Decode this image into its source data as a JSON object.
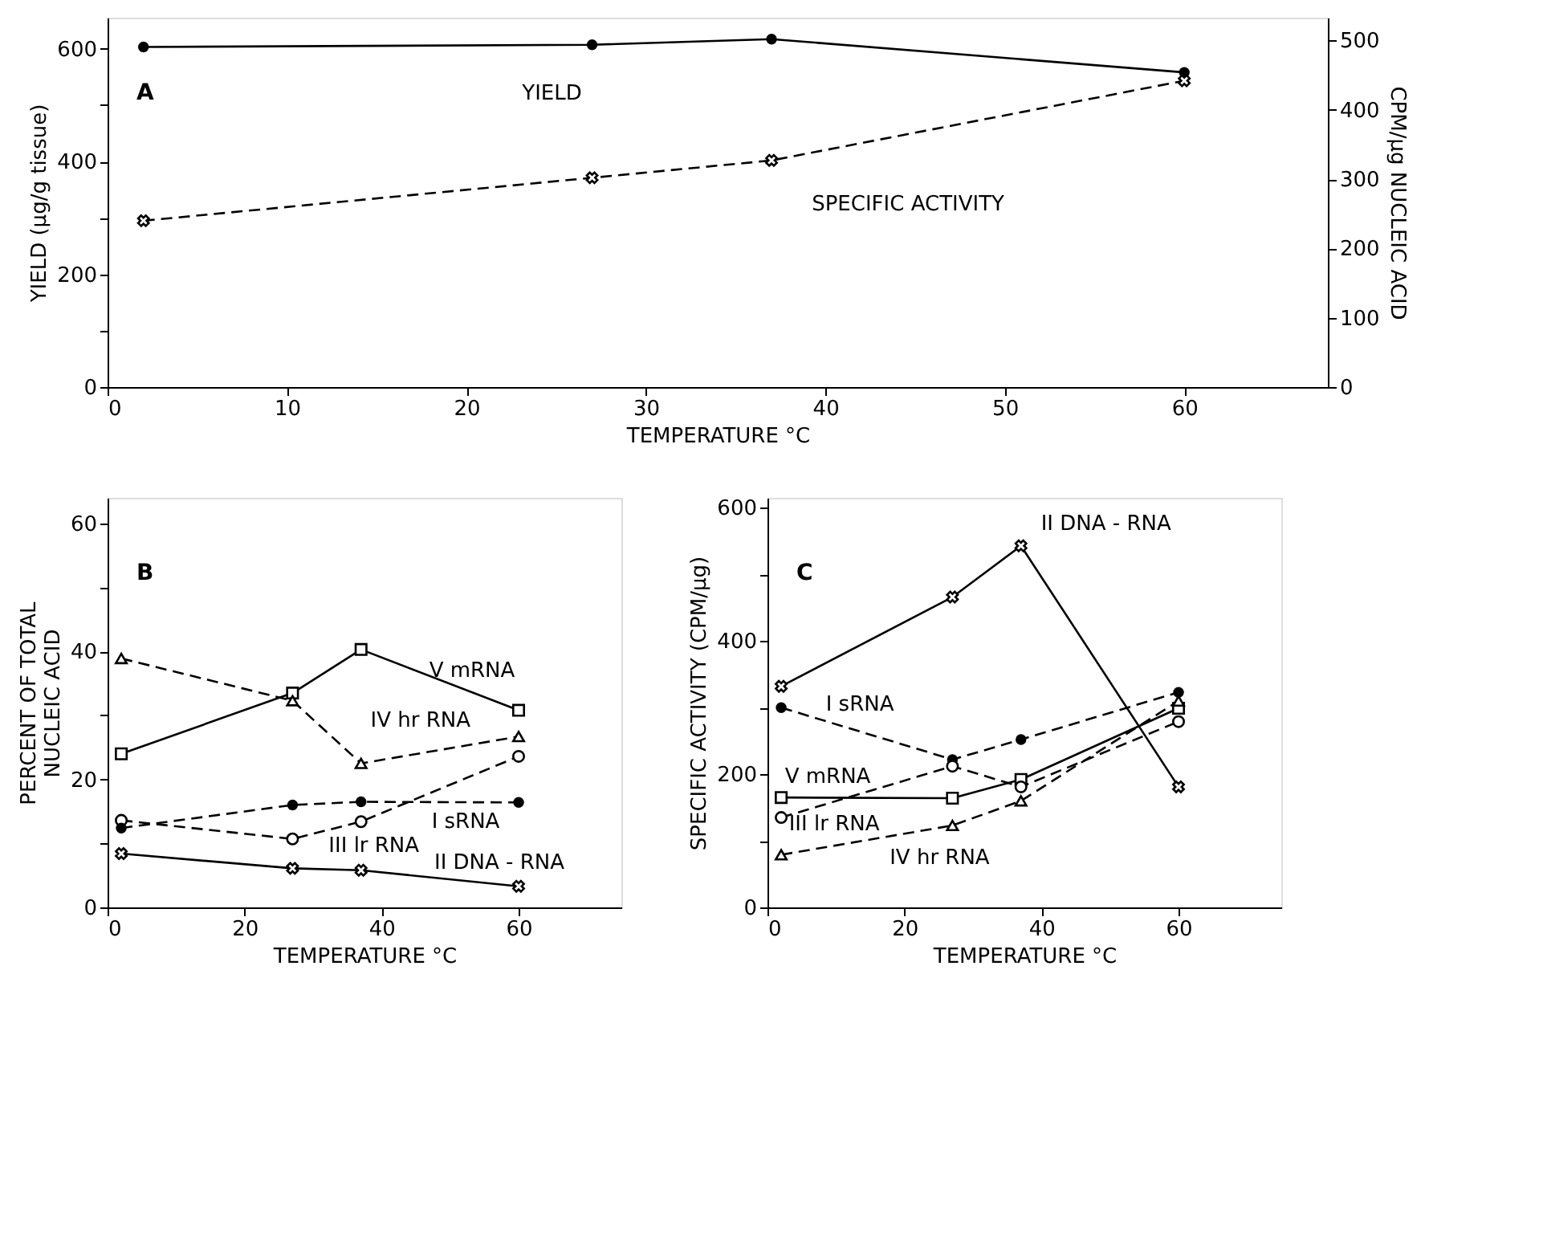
{
  "chart_data": [
    {
      "type": "line",
      "xlabel": "TEMPERATURE °C",
      "ylabel": "YIELD (µg/g tissue)",
      "y2label": "CPM/µg NUCLEIC ACID",
      "annotations": [
        "A"
      ],
      "x": [
        2,
        27,
        37,
        60
      ],
      "xlim": [
        0,
        68
      ],
      "xticks": [
        0,
        10,
        20,
        30,
        40,
        50,
        60
      ],
      "ylim": [
        0,
        655
      ],
      "yticks": [
        0,
        {
          "value": 100,
          "label": null
        },
        200,
        {
          "value": 300,
          "label": null
        },
        400,
        {
          "value": 500,
          "label": null
        },
        600
      ],
      "y2lim": [
        0,
        533
      ],
      "y2ticks": [
        0,
        100,
        200,
        300,
        400,
        500
      ],
      "series": [
        {
          "name": "YIELD",
          "color": "#000000",
          "values": [
            603,
            607,
            617,
            558
          ],
          "marker": "circle",
          "line_style": "solid"
        },
        {
          "name": "SPECIFIC ACTIVITY",
          "color": "#000000",
          "values": [
            240,
            302,
            327,
            442
          ],
          "marker": "cross",
          "line_style": "dashed",
          "axis": "y2"
        }
      ]
    },
    {
      "type": "line",
      "xlabel": "TEMPERATURE °C",
      "ylabel": "PERCENT OF TOTAL\nNUCLEIC ACID",
      "annotations": [
        "B"
      ],
      "x": [
        2,
        27,
        37,
        60
      ],
      "xlim": [
        0,
        75
      ],
      "xticks": [
        0,
        20,
        40,
        60
      ],
      "ylim": [
        0,
        64
      ],
      "yticks": [
        0,
        {
          "value": 10,
          "label": null
        },
        20,
        {
          "value": 30,
          "label": null
        },
        40,
        {
          "value": 50,
          "label": null
        },
        60
      ],
      "series": [
        {
          "name": "V mRNA",
          "color": "#000000",
          "values": [
            24,
            33.5,
            40.3,
            30.8
          ],
          "marker": "square",
          "line_style": "solid"
        },
        {
          "name": "IV hr RNA",
          "color": "#000000",
          "values": [
            38.9,
            32.3,
            22.5,
            26.7
          ],
          "marker": "triangle",
          "line_style": "dashed"
        },
        {
          "name": "III lr RNA",
          "color": "#000000",
          "values": [
            13.6,
            10.7,
            13.4,
            23.6
          ],
          "marker": "circle",
          "line_style": "dashed"
        },
        {
          "name": "I sRNA",
          "color": "#000000",
          "values": [
            12.4,
            16,
            16.5,
            16.4
          ],
          "marker": "circle",
          "line_style": "dashed"
        },
        {
          "name": "II DNA - RNA",
          "color": "#000000",
          "values": [
            8.4,
            6.1,
            5.8,
            3.3
          ],
          "marker": "cross",
          "line_style": "solid"
        }
      ]
    },
    {
      "type": "line",
      "xlabel": "TEMPERATURE °C",
      "ylabel": "SPECIFIC ACTIVITY (CPM/µg)",
      "annotations": [
        "C"
      ],
      "x": [
        2,
        27,
        37,
        60
      ],
      "xlim": [
        0,
        75
      ],
      "xticks": [
        0,
        20,
        40,
        60
      ],
      "ylim": [
        0,
        615
      ],
      "yticks": [
        0,
        {
          "value": 100,
          "label": null
        },
        200,
        {
          "value": 300,
          "label": null
        },
        400,
        {
          "value": 500,
          "label": null
        },
        600
      ],
      "series": [
        {
          "name": "II DNA - RNA",
          "color": "#000000",
          "values": [
            332,
            466,
            543,
            181
          ],
          "marker": "cross",
          "line_style": "solid"
        },
        {
          "name": "I sRNA",
          "color": "#000000",
          "values": [
            300,
            222,
            252,
            323
          ],
          "marker": "circle",
          "line_style": "dashed"
        },
        {
          "name": "V mRNA",
          "color": "#000000",
          "values": [
            165,
            164,
            192,
            299
          ],
          "marker": "square",
          "line_style": "solid"
        },
        {
          "name": "III lr RNA",
          "color": "#000000",
          "values": [
            135,
            212,
            181,
            279
          ],
          "marker": "circle",
          "line_style": "dashed"
        },
        {
          "name": "IV hr RNA",
          "color": "#000000",
          "values": [
            79,
            123,
            160,
            310
          ],
          "marker": "triangle",
          "line_style": "dashed"
        }
      ]
    }
  ]
}
